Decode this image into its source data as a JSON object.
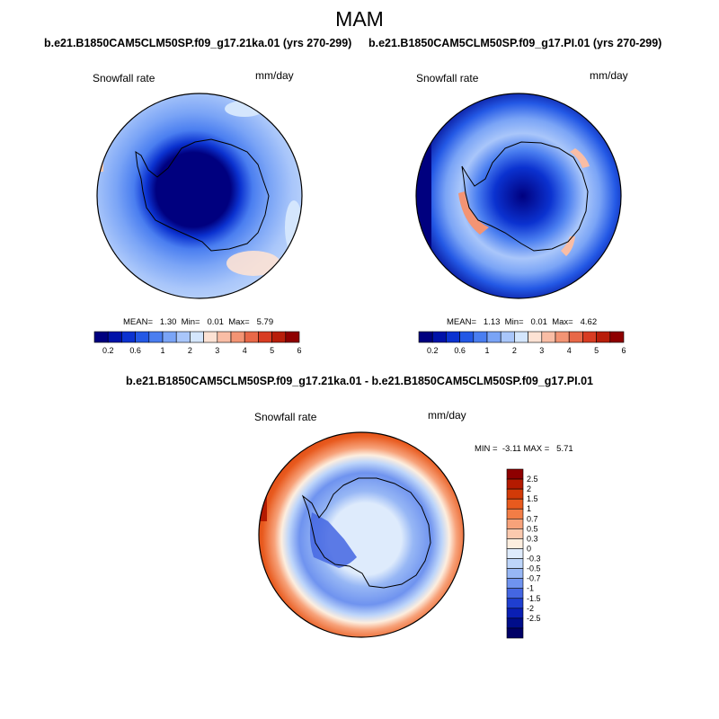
{
  "page": {
    "title": "MAM"
  },
  "panels": [
    {
      "header": "b.e21.B1850CAM5CLM50SP.f09_g17.21ka.01 (yrs 270-299)",
      "variable": "Snowfall rate",
      "units": "mm/day",
      "stats": "MEAN=   1.30  Min=   0.01  Max=   5.79"
    },
    {
      "header": "b.e21.B1850CAM5CLM50SP.f09_g17.PI.01 (yrs 270-299)",
      "variable": "Snowfall rate",
      "units": "mm/day",
      "stats": "MEAN=   1.13  Min=   0.01  Max=   4.62"
    }
  ],
  "diff_panel": {
    "header": "b.e21.B1850CAM5CLM50SP.f09_g17.21ka.01 - b.e21.B1850CAM5CLM50SP.f09_g17.PI.01",
    "variable": "Snowfall rate",
    "units": "mm/day",
    "minmax": "MIN =  -3.11 MAX =   5.71"
  },
  "colorbar_abs": {
    "colors": [
      "#00007f",
      "#0012a8",
      "#0b32d0",
      "#2358e5",
      "#4a7ef0",
      "#7aa4f6",
      "#a9c6fa",
      "#d4e6fd",
      "#fde2d4",
      "#f9bda5",
      "#f39474",
      "#e86848",
      "#d83c22",
      "#b81e0a",
      "#8e0000"
    ],
    "ticks": [
      "0.2",
      "0.6",
      "1",
      "2",
      "3",
      "4",
      "5",
      "6"
    ]
  },
  "colorbar_diff": {
    "colors": [
      "#8e0000",
      "#b41a00",
      "#d23a08",
      "#e85a1e",
      "#f27d46",
      "#f7a27a",
      "#fbc9ae",
      "#fdeedf",
      "#deebfc",
      "#bdd5fa",
      "#97b7f5",
      "#6f93ef",
      "#4466e2",
      "#1f3fd0",
      "#0a1fb4",
      "#000d8a",
      "#000066"
    ],
    "ticks": [
      "2.5",
      "2",
      "1.5",
      "1",
      "0.7",
      "0.5",
      "0.3",
      "0",
      "-0.3",
      "-0.5",
      "-0.7",
      "-1",
      "-1.5",
      "-2",
      "-2.5"
    ]
  }
}
